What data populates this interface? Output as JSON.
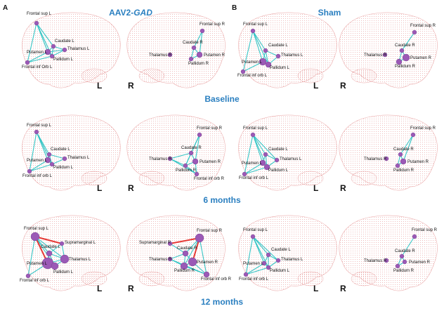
{
  "panels": {
    "a": "A",
    "b": "B"
  },
  "groups": {
    "aav_prefix": "AAV2-",
    "aav_gene": "GAD",
    "sham": "Sham"
  },
  "timepoints": [
    "Baseline",
    "6 months",
    "12 months"
  ],
  "sides": {
    "left": "L",
    "right": "R"
  },
  "colors": {
    "node": "#9b59b6",
    "edge": "#2ec4c4",
    "edge_strong": "#e53935",
    "brain_dots": "#e9a3a3",
    "title": "#2a7fc0"
  },
  "regions": {
    "frontal_sup_L": "Frontal sup L",
    "caudate_L": "Caudate L",
    "thalamus_L": "Thalamus L",
    "putamen_L": "Putamen L",
    "pallidum_L": "Pallidum L",
    "frontal_inf_orb_L_cap": "Frontal inf Orb L",
    "frontal_inf_orb_L": "Frontal inf orb L",
    "supramarginal_L": "Supramarginal L",
    "frontal_sup_R": "Frontal sup R",
    "caudate_R": "Caudate R",
    "thalamus_R": "Thalamus R",
    "putamen_R": "Putamen R",
    "pallidum_R": "Pallidum R",
    "frontal_inf_orb_R": "Frontal inf orb R",
    "supramarginal_R": "Supramarginal R"
  }
}
